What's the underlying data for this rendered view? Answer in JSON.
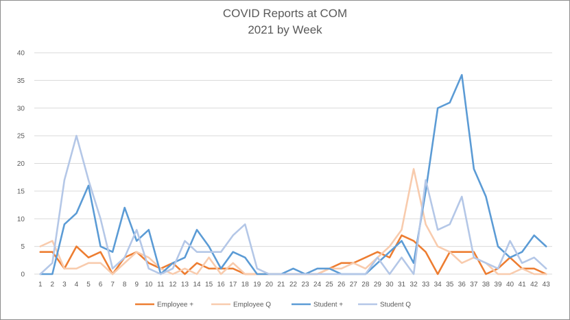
{
  "chart_data": {
    "type": "line",
    "title": "COVID Reports at COM",
    "subtitle": "2021 by Week",
    "xlabel": "",
    "ylabel": "",
    "ylim": [
      0,
      40
    ],
    "yticks": [
      0,
      5,
      10,
      15,
      20,
      25,
      30,
      35,
      40
    ],
    "x": [
      1,
      2,
      3,
      4,
      5,
      6,
      7,
      8,
      9,
      10,
      11,
      12,
      13,
      14,
      15,
      16,
      17,
      18,
      19,
      20,
      21,
      22,
      23,
      24,
      25,
      26,
      27,
      28,
      29,
      30,
      31,
      32,
      33,
      34,
      35,
      36,
      37,
      38,
      39,
      40,
      41,
      42,
      43
    ],
    "grid": true,
    "legend_position": "bottom",
    "series": [
      {
        "name": "Employee +",
        "color": "#ed7d31",
        "values": [
          4,
          4,
          1,
          5,
          3,
          4,
          0,
          3,
          4,
          2,
          1,
          2,
          0,
          2,
          1,
          1,
          1,
          0,
          0,
          0,
          0,
          0,
          0,
          0,
          1,
          2,
          2,
          3,
          4,
          3,
          7,
          6,
          4,
          0,
          4,
          4,
          4,
          0,
          1,
          3,
          1,
          1,
          0
        ]
      },
      {
        "name": "Employee Q",
        "color": "#f8cbad",
        "values": [
          5,
          6,
          1,
          1,
          2,
          2,
          0,
          2,
          4,
          3,
          1,
          0,
          1,
          0,
          3,
          0,
          2,
          0,
          0,
          0,
          0,
          0,
          0,
          0,
          1,
          1,
          2,
          1,
          3,
          5,
          8,
          19,
          9,
          5,
          4,
          2,
          3,
          2,
          0,
          0,
          1,
          0,
          0
        ]
      },
      {
        "name": "Student +",
        "color": "#5b9bd5",
        "values": [
          0,
          0,
          9,
          11,
          16,
          5,
          4,
          12,
          6,
          8,
          0,
          2,
          3,
          8,
          5,
          1,
          4,
          3,
          0,
          0,
          0,
          1,
          0,
          1,
          1,
          0,
          0,
          0,
          2,
          4,
          6,
          2,
          15,
          30,
          31,
          36,
          19,
          14,
          5,
          3,
          4,
          7,
          5
        ]
      },
      {
        "name": "Student Q",
        "color": "#b4c7e7",
        "values": [
          0,
          2,
          17,
          25,
          17,
          10,
          1,
          3,
          8,
          1,
          0,
          1,
          6,
          4,
          4,
          4,
          7,
          9,
          1,
          0,
          0,
          0,
          0,
          0,
          0,
          0,
          0,
          0,
          3,
          0,
          3,
          0,
          17,
          8,
          9,
          14,
          3,
          2,
          1,
          6,
          2,
          3,
          1
        ]
      }
    ]
  }
}
